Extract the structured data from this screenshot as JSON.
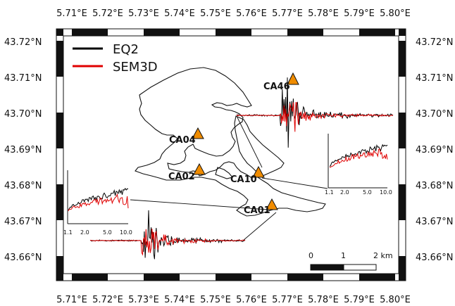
{
  "map": {
    "lon_ticks": [
      "5.71°E",
      "5.72°E",
      "5.73°E",
      "5.74°E",
      "5.75°E",
      "5.76°E",
      "5.77°E",
      "5.78°E",
      "5.79°E",
      "5.80°E"
    ],
    "lat_ticks": [
      "43.72°N",
      "43.71°N",
      "43.70°N",
      "43.69°N",
      "43.68°N",
      "43.67°N",
      "43.66°N"
    ],
    "legend": [
      {
        "label": "EQ2",
        "color": "#000000"
      },
      {
        "label": "SEM3D",
        "color": "#e00000"
      }
    ],
    "stations": [
      {
        "id": "CA46",
        "label": "CA46",
        "marker_color": "#f08c00"
      },
      {
        "id": "CA04",
        "label": "CA04",
        "marker_color": "#f08c00"
      },
      {
        "id": "CA02",
        "label": "CA02",
        "marker_color": "#f08c00"
      },
      {
        "id": "CA10",
        "label": "CA10",
        "marker_color": "#f08c00"
      },
      {
        "id": "CA01",
        "label": "CA01",
        "marker_color": "#f08c00"
      }
    ],
    "spectrum_axis_labels": [
      "1.1",
      "2.0",
      "5.0",
      "10.0"
    ],
    "scale_bar": {
      "labels": [
        "0",
        "1",
        "2 km"
      ]
    }
  }
}
